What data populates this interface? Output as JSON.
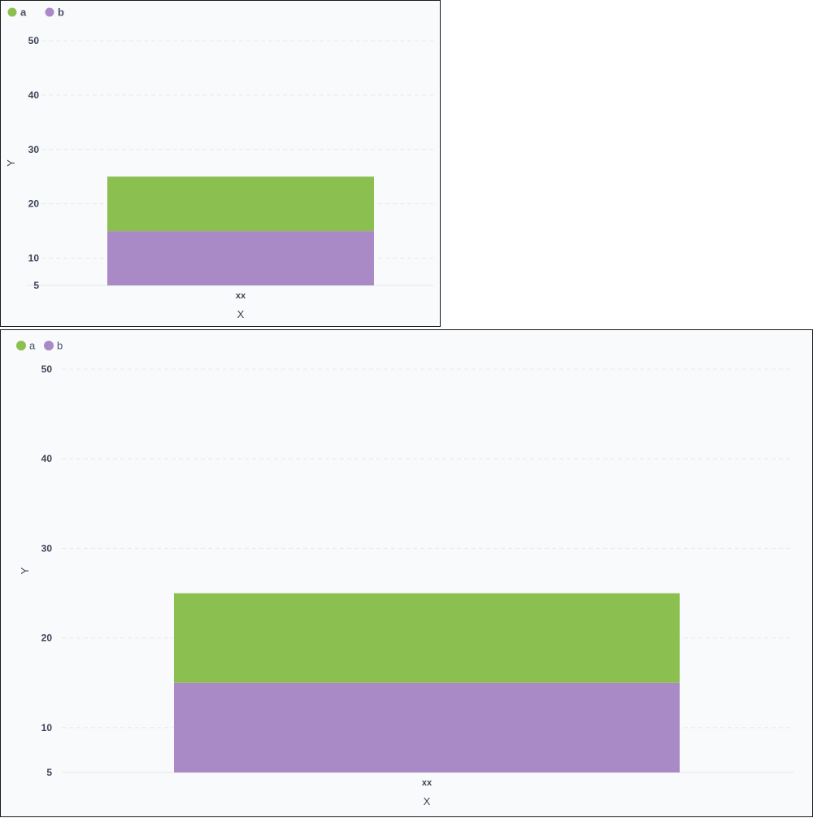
{
  "chart_data": [
    {
      "type": "bar",
      "stacked": true,
      "categories": [
        "xx"
      ],
      "series": [
        {
          "name": "a",
          "values": [
            10
          ]
        },
        {
          "name": "b",
          "values": [
            10
          ]
        }
      ],
      "colors": {
        "a": "#8bbf4f",
        "b": "#a98ac6"
      },
      "xlabel": "X",
      "ylabel": "Y",
      "ylim": [
        5,
        50
      ],
      "yticks": [
        5,
        10,
        20,
        30,
        40,
        50
      ],
      "grid": true,
      "legend": "top-left"
    },
    {
      "type": "bar",
      "stacked": true,
      "categories": [
        "xx"
      ],
      "series": [
        {
          "name": "a",
          "values": [
            10
          ]
        },
        {
          "name": "b",
          "values": [
            10
          ]
        }
      ],
      "colors": {
        "a": "#8bbf4f",
        "b": "#a98ac6"
      },
      "xlabel": "X",
      "ylabel": "Y",
      "ylim": [
        5,
        50
      ],
      "yticks": [
        5,
        10,
        20,
        30,
        40,
        50
      ],
      "grid": true,
      "legend": "top-left"
    }
  ]
}
